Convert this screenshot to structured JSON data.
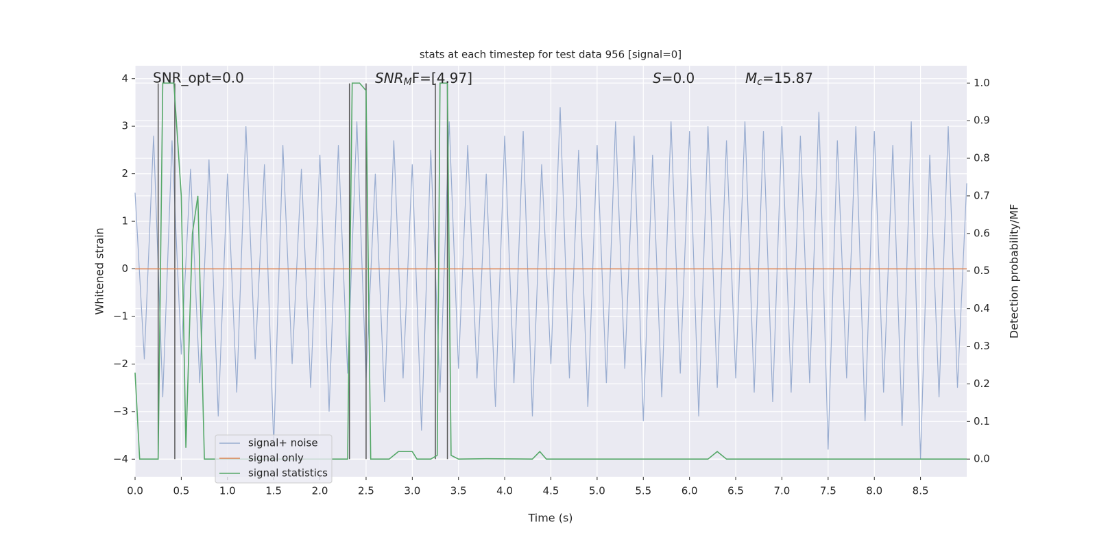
{
  "chart_data": {
    "type": "line",
    "title": "stats at each timestep for test data 956 [signal=0]",
    "xlabel": "Time (s)",
    "ylabel": "Whitened strain",
    "y2label": "Detection probability/MF",
    "grid": true,
    "xlim": [
      0,
      9.0
    ],
    "ylim": [
      -4.37,
      4.27
    ],
    "y2lim": [
      -0.047,
      1.046
    ],
    "xticks": [
      {
        "value": 0,
        "label": "0.0"
      },
      0.5,
      {
        "value": 1,
        "label": "1.0"
      },
      1.5,
      {
        "value": 2,
        "label": "2.0"
      },
      2.5,
      {
        "value": 3,
        "label": "3.0"
      },
      3.5,
      {
        "value": 4,
        "label": "4.0"
      },
      4.5,
      {
        "value": 5,
        "label": "5.0"
      },
      5.5,
      {
        "value": 6,
        "label": "6.0"
      },
      6.5,
      {
        "value": 7,
        "label": "7.0"
      },
      7.5,
      {
        "value": 8,
        "label": "8.0"
      },
      8.5
    ],
    "yticks": [
      {
        "value": -4,
        "label": "−4"
      },
      {
        "value": -3,
        "label": "−3"
      },
      {
        "value": -2,
        "label": "−2"
      },
      {
        "value": -1,
        "label": "−1"
      },
      0,
      1,
      2,
      3,
      4
    ],
    "y2ticks": [
      {
        "value": 0,
        "label": "0.0"
      },
      0.1,
      0.2,
      0.3,
      0.4,
      0.5,
      0.6,
      0.7,
      0.8,
      0.9,
      {
        "value": 1,
        "label": "1.0"
      }
    ],
    "series": [
      {
        "name": "signal+ noise",
        "color": "#98acd0",
        "x": [
          0,
          0.1,
          0.2,
          0.3,
          0.4,
          0.5,
          0.6,
          0.7,
          0.8,
          0.9,
          1,
          1.1,
          1.2,
          1.3,
          1.4,
          1.5,
          1.6,
          1.7,
          1.8,
          1.9,
          2,
          2.1,
          2.2,
          2.3,
          2.4,
          2.5,
          2.6,
          2.7,
          2.8,
          2.9,
          3,
          3.1,
          3.2,
          3.3,
          3.4,
          3.5,
          3.6,
          3.7,
          3.8,
          3.9,
          4,
          4.1,
          4.2,
          4.3,
          4.4,
          4.5,
          4.6,
          4.7,
          4.8,
          4.9,
          5,
          5.1,
          5.2,
          5.3,
          5.4,
          5.5,
          5.6,
          5.7,
          5.8,
          5.9,
          6,
          6.1,
          6.2,
          6.3,
          6.4,
          6.5,
          6.6,
          6.7,
          6.8,
          6.9,
          7,
          7.1,
          7.2,
          7.3,
          7.4,
          7.5,
          7.6,
          7.7,
          7.8,
          7.9,
          8,
          8.1,
          8.2,
          8.3,
          8.4,
          8.5,
          8.6,
          8.7,
          8.8,
          8.9,
          9
        ],
        "values": [
          1.6,
          -1.9,
          2.8,
          -2.7,
          2.7,
          -1.8,
          2.1,
          -2.4,
          2.3,
          -3.1,
          2.0,
          -2.6,
          3.0,
          -1.9,
          2.2,
          -3.7,
          2.6,
          -2.0,
          2.1,
          -2.5,
          2.4,
          -3.0,
          2.6,
          -2.2,
          3.1,
          -2.3,
          2.0,
          -2.8,
          2.7,
          -2.3,
          2.2,
          -3.4,
          2.5,
          -2.6,
          3.1,
          -2.1,
          2.6,
          -2.3,
          2.0,
          -2.9,
          2.8,
          -2.4,
          2.9,
          -3.1,
          2.2,
          -2.0,
          3.4,
          -2.3,
          2.5,
          -2.9,
          2.6,
          -2.4,
          3.1,
          -2.1,
          2.8,
          -3.2,
          2.4,
          -2.7,
          3.1,
          -2.2,
          2.9,
          -3.1,
          3.0,
          -2.5,
          2.7,
          -2.3,
          3.1,
          -2.6,
          2.9,
          -2.8,
          3.0,
          -2.6,
          2.8,
          -2.4,
          3.3,
          -3.8,
          2.7,
          -2.3,
          3.0,
          -3.2,
          2.9,
          -2.6,
          2.6,
          -3.3,
          3.1,
          -4.0,
          2.4,
          -2.7,
          3.0,
          -2.5,
          1.8
        ]
      },
      {
        "name": "signal only",
        "color": "#dd8452",
        "x": [
          0,
          9
        ],
        "values": [
          0,
          0
        ]
      },
      {
        "name": "signal statistics",
        "color": "#55a868",
        "axis": "y2",
        "x": [
          0,
          0.05,
          0.2,
          0.25,
          0.3,
          0.42,
          0.5,
          0.55,
          0.62,
          0.68,
          0.75,
          2.3,
          2.35,
          2.43,
          2.5,
          2.55,
          2.75,
          2.85,
          2.95,
          3.0,
          3.05,
          3.2,
          3.27,
          3.3,
          3.38,
          3.42,
          3.5,
          3.8,
          4.3,
          4.38,
          4.45,
          6.2,
          6.3,
          6.4,
          9.0
        ],
        "values": [
          0.23,
          0.0,
          0.0,
          0.0,
          1.0,
          1.0,
          0.7,
          0.03,
          0.6,
          0.7,
          0.0,
          0.0,
          1.0,
          1.0,
          0.98,
          0.0,
          0.0,
          0.02,
          0.02,
          0.02,
          0.0,
          0.0,
          0.01,
          1.0,
          1.0,
          0.01,
          0.0,
          0.001,
          0.0,
          0.02,
          0.0,
          0.0,
          0.02,
          0.0,
          0.0
        ]
      }
    ],
    "vlines": {
      "color": "#555555",
      "x": [
        0.25,
        0.43,
        2.32,
        2.5,
        3.25,
        3.38
      ],
      "ymin": -4,
      "ymax": 3.9
    },
    "annotations": [
      {
        "text": "SNR_opt=0.0"
      },
      {
        "main": "SNR",
        "sub": "M",
        "rest": "F=[4.97]"
      },
      {
        "main": "S",
        "rest": "=0.0"
      },
      {
        "main": "M",
        "sub": "c",
        "rest": "=15.87"
      }
    ]
  }
}
